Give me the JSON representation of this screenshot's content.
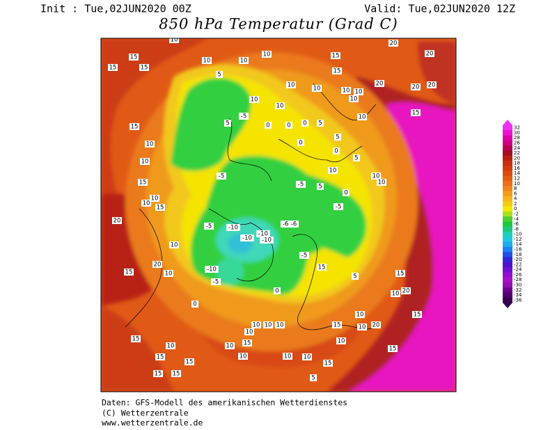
{
  "header": {
    "init": "Init : Tue,02JUN2020 00Z",
    "valid": "Valid: Tue,02JUN2020 12Z",
    "title": "850 hPa Temperatur (Grad C)"
  },
  "colorbar": {
    "levels": [
      32,
      30,
      28,
      26,
      24,
      22,
      20,
      18,
      16,
      14,
      12,
      10,
      8,
      6,
      4,
      2,
      0,
      -2,
      -4,
      -6,
      -8,
      -10,
      -12,
      -14,
      -16,
      -18,
      -20,
      -22,
      -24,
      -26,
      -28,
      -30,
      -32,
      -34,
      -36
    ],
    "colors": [
      "#f030f0",
      "#f010d0",
      "#e000a8",
      "#d00080",
      "#b80050",
      "#a01020",
      "#b82010",
      "#c83010",
      "#d43c10",
      "#dc4c10",
      "#e45c14",
      "#ea7018",
      "#f0861c",
      "#f49c1e",
      "#f6b41e",
      "#f4cc10",
      "#f4e800",
      "#a8e020",
      "#50d030",
      "#20c840",
      "#20c880",
      "#20d0b8",
      "#20c8e0",
      "#20a8f0",
      "#2080f0",
      "#2050e8",
      "#3028d8",
      "#5010d0",
      "#7010d0",
      "#9010d0",
      "#a810c8",
      "#9010b0",
      "#700090",
      "#500070",
      "#380050"
    ]
  },
  "contour_labels": [
    15,
    15,
    15,
    10,
    10,
    10,
    5,
    10,
    15,
    15,
    10,
    10,
    10,
    10,
    10,
    20,
    10,
    15,
    20,
    20,
    20,
    20,
    15,
    10,
    10,
    15,
    10,
    10,
    15,
    20,
    10,
    20,
    15,
    10,
    -10,
    -5,
    0,
    -10,
    -10,
    -10,
    -10,
    -6,
    -6,
    -5,
    -5,
    5,
    0,
    10,
    10,
    10,
    0,
    -5,
    5,
    10,
    10,
    0,
    0,
    0,
    5,
    5,
    0,
    5,
    -5,
    -5,
    -5,
    15,
    5,
    15,
    20,
    10,
    15,
    0,
    10,
    10,
    10,
    10,
    15,
    10,
    10,
    15,
    15,
    15,
    15,
    15,
    10,
    10,
    10,
    15,
    10,
    10,
    10,
    20,
    15,
    15,
    5
  ],
  "footer": [
    "Daten: GFS-Modell des amerikanischen Wetterdienstes",
    "(C) Wetterzentrale",
    "www.wetterzentrale.de"
  ]
}
